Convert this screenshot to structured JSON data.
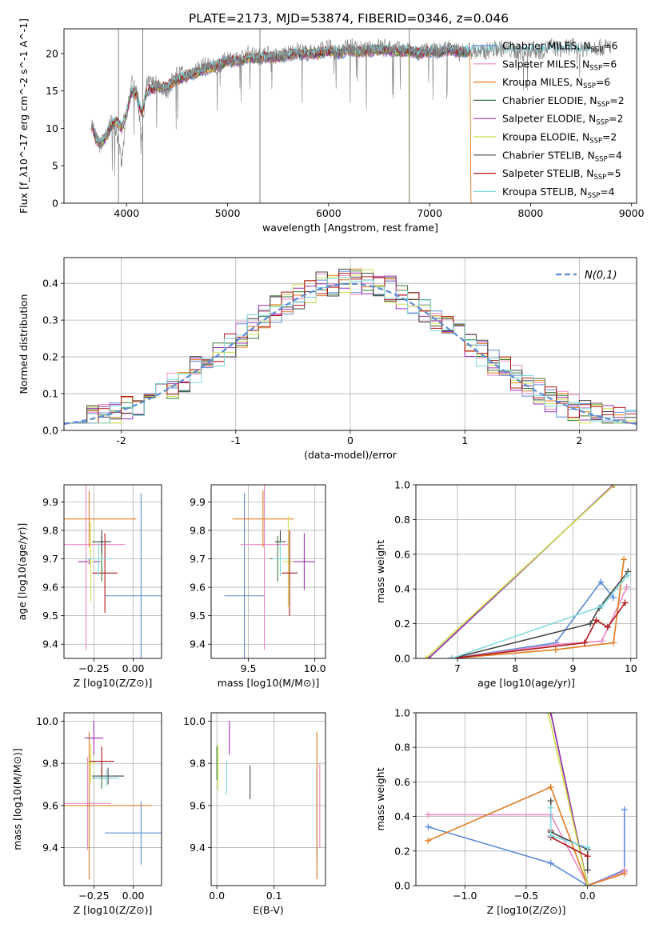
{
  "figure_title": "PLATE=2173, MJD=53874, FIBERID=0346, z=0.046",
  "colors": {
    "Chabrier MILES": "#5b8bd6",
    "Salpeter MILES": "#e88ac4",
    "Kroupa MILES": "#e07b1f",
    "Chabrier ELODIE": "#3a7a3a",
    "Salpeter ELODIE": "#9b30b0",
    "Kroupa ELODIE": "#cfe04a",
    "Chabrier STELIB": "#444444",
    "Salpeter STELIB": "#b01818",
    "Kroupa STELIB": "#7ed9e0",
    "grid": "#b0b0b0",
    "normal_curve": "#5b8bd6"
  },
  "chart_data": [
    {
      "id": "spectrum",
      "type": "line",
      "xlabel": "wavelength [Angstrom, rest frame]",
      "ylabel": "Flux [f_λ10^-17 erg cm^-2 s^-1 A^-1]",
      "xlim": [
        3380,
        9050
      ],
      "ylim": [
        0,
        23.3
      ],
      "xticks": [
        4000,
        5000,
        6000,
        7000,
        8000,
        9000
      ],
      "yticks": [
        0,
        5,
        10,
        15,
        20
      ],
      "grid": false,
      "legend_position": "top-right",
      "legend": [
        {
          "model": "Chabrier MILES",
          "nssp": "6"
        },
        {
          "model": "Salpeter MILES",
          "nssp": "6"
        },
        {
          "model": "Kroupa MILES",
          "nssp": "6"
        },
        {
          "model": "Chabrier ELODIE",
          "nssp": "2"
        },
        {
          "model": "Salpeter ELODIE",
          "nssp": "2"
        },
        {
          "model": "Kroupa ELODIE",
          "nssp": "2"
        },
        {
          "model": "Chabrier STELIB",
          "nssp": "4"
        },
        {
          "model": "Salpeter STELIB",
          "nssp": "5"
        },
        {
          "model": "Kroupa STELIB",
          "nssp": "4"
        }
      ],
      "data_series": {
        "name": "data",
        "color": "#808080",
        "x": [
          3650,
          3700,
          3750,
          3800,
          3850,
          3900,
          3950,
          4000,
          4050,
          4100,
          4150,
          4200,
          4300,
          4400,
          4500,
          4600,
          4700,
          4800,
          4900,
          5000,
          5100,
          5200,
          5300,
          5400,
          5500,
          5600,
          5700,
          5800,
          5900,
          6000,
          6100,
          6200,
          6300,
          6400,
          6500,
          6600,
          6700,
          6800,
          6900,
          7000,
          7100,
          7200,
          7300,
          7400,
          7500,
          7600,
          7700,
          7800,
          7900,
          8000,
          8100,
          8200,
          8300,
          8400,
          8500,
          8600,
          8700,
          8800
        ],
        "y": [
          11,
          8.5,
          7.5,
          9,
          11,
          10,
          5,
          12,
          16,
          15,
          9,
          16,
          16,
          15,
          17.5,
          17,
          18,
          18.5,
          18,
          19.5,
          19,
          20,
          19.5,
          20,
          19.5,
          20,
          20.5,
          20,
          20.5,
          20.8,
          20,
          21,
          20.5,
          20.5,
          21,
          20.8,
          20.5,
          20.5,
          20,
          20.5,
          20.3,
          21,
          20,
          20.5,
          20,
          20.5,
          20.7,
          20.5,
          20,
          20.5,
          20.3,
          21,
          20.5,
          21,
          20.5,
          21,
          20.8,
          21
        ]
      },
      "model_series": {
        "x": [
          3650,
          3700,
          3750,
          3800,
          3850,
          3900,
          3950,
          4000,
          4050,
          4100,
          4150,
          4200,
          4300,
          4400,
          4500,
          4600,
          4700,
          4800,
          4900,
          5000,
          5100,
          5200,
          5300,
          5400,
          5500,
          5600,
          5700,
          5800,
          5900,
          6000,
          6100,
          6200,
          6300,
          6400,
          6500,
          6600,
          6700,
          6800,
          6900,
          7000,
          7100,
          7200,
          7300,
          7400
        ],
        "y": [
          10.5,
          8.5,
          8,
          9,
          10.5,
          11,
          10,
          12,
          15,
          14.5,
          12,
          15,
          15.5,
          15.5,
          16.5,
          17,
          17.5,
          18,
          18.3,
          19,
          19,
          19.5,
          19.3,
          19.5,
          19.5,
          19.8,
          20,
          20,
          20,
          20.3,
          20,
          20.5,
          20.2,
          20.3,
          20.5,
          20.4,
          20.3,
          20.3,
          20,
          20.3,
          20.2,
          20.5,
          20.2,
          20.3
        ]
      },
      "extended_models": [
        "Kroupa STELIB"
      ],
      "extended_x": [
        7500,
        7600,
        7700,
        7800,
        7900,
        8000,
        8100,
        8200,
        8300,
        8400,
        8500,
        8600
      ],
      "extended_y": [
        20.2,
        20.4,
        20.5,
        20.3,
        20.2,
        20.3,
        20.2,
        20.6,
        20.4,
        20.5,
        20.4,
        20.5
      ],
      "cutoffs": [
        {
          "model": "Kroupa ELODIE",
          "x": 6800
        },
        {
          "model": "Kroupa MILES",
          "x": 7410
        }
      ],
      "dropouts": [
        {
          "series": "data",
          "x": 3920
        },
        {
          "series": "data",
          "x": 4160
        },
        {
          "series": "data",
          "x": 5320
        },
        {
          "series": "data",
          "x": 6800
        }
      ]
    },
    {
      "id": "residuals",
      "type": "histogram",
      "xlabel": "(data-model)/error",
      "ylabel": "Normed distribution",
      "xlim": [
        -2.5,
        2.5
      ],
      "ylim": [
        0,
        0.47
      ],
      "xticks": [
        -2,
        -1,
        0,
        1,
        2
      ],
      "yticks": [
        0.0,
        0.1,
        0.2,
        0.3,
        0.4
      ],
      "grid": true,
      "legend_position": "top-right",
      "normal_curve_label": "N(0,1)",
      "bin_width": 0.1,
      "bins_from": -2.5,
      "bins_to": 2.5
    },
    {
      "id": "age_vs_Z",
      "type": "errorbar",
      "xlabel": "Z [log10(Z/Z⊙)]",
      "ylabel": "age [log10(age/yr)]",
      "xlim": [
        -0.44,
        0.18
      ],
      "ylim": [
        9.35,
        9.96
      ],
      "xticks": [
        -0.25,
        0.0
      ],
      "xtick_labels": [
        "−0.25",
        "0.00"
      ],
      "yticks": [
        9.4,
        9.5,
        9.6,
        9.7,
        9.8,
        9.9
      ],
      "grid": true,
      "points": [
        {
          "model": "Chabrier MILES",
          "x": 0.05,
          "xerr": 0.23,
          "y": 9.57,
          "yerr": 0.36
        },
        {
          "model": "Salpeter MILES",
          "x": -0.3,
          "xerr": 0.25,
          "y": 9.75,
          "yerr": 0.37
        },
        {
          "model": "Kroupa MILES",
          "x": -0.28,
          "xerr": 0.3,
          "y": 9.84,
          "yerr": 0.1
        },
        {
          "model": "Chabrier ELODIE",
          "x": -0.2,
          "xerr": 0.05,
          "y": 9.7,
          "yerr": 0.08
        },
        {
          "model": "Salpeter ELODIE",
          "x": -0.28,
          "xerr": 0.07,
          "y": 9.69,
          "yerr": 0.01
        },
        {
          "model": "Kroupa ELODIE",
          "x": -0.27,
          "xerr": 0.02,
          "y": 9.69,
          "yerr": 0.14
        },
        {
          "model": "Chabrier STELIB",
          "x": -0.2,
          "xerr": 0.06,
          "y": 9.76,
          "yerr": 0.04
        },
        {
          "model": "Salpeter STELIB",
          "x": -0.18,
          "xerr": 0.08,
          "y": 9.65,
          "yerr": 0.14
        },
        {
          "model": "Kroupa STELIB",
          "x": -0.22,
          "xerr": 0.09,
          "y": 9.7,
          "yerr": 0.06
        }
      ]
    },
    {
      "id": "age_vs_mass",
      "type": "errorbar",
      "xlabel": "mass [log10(M/M⊙)]",
      "ylabel": "",
      "xlim": [
        9.22,
        10.08
      ],
      "ylim": [
        9.35,
        9.96
      ],
      "xticks": [
        9.5,
        10.0
      ],
      "xtick_labels": [
        "9.5",
        "10.0"
      ],
      "yticks": [
        9.4,
        9.5,
        9.6,
        9.7,
        9.8,
        9.9
      ],
      "grid": true,
      "points": [
        {
          "model": "Chabrier MILES",
          "x": 9.47,
          "xerr": 0.15,
          "y": 9.57,
          "yerr": 0.36
        },
        {
          "model": "Salpeter MILES",
          "x": 9.62,
          "xerr": 0.18,
          "y": 9.75,
          "yerr": 0.37
        },
        {
          "model": "Kroupa MILES",
          "x": 9.61,
          "xerr": 0.23,
          "y": 9.84,
          "yerr": 0.1
        },
        {
          "model": "Chabrier ELODIE",
          "x": 9.72,
          "xerr": 0.06,
          "y": 9.7,
          "yerr": 0.08
        },
        {
          "model": "Salpeter ELODIE",
          "x": 9.92,
          "xerr": 0.08,
          "y": 9.69,
          "yerr": 0.1
        },
        {
          "model": "Kroupa ELODIE",
          "x": 9.8,
          "xerr": 0.04,
          "y": 9.69,
          "yerr": 0.16
        },
        {
          "model": "Chabrier STELIB",
          "x": 9.74,
          "xerr": 0.04,
          "y": 9.76,
          "yerr": 0.04
        },
        {
          "model": "Salpeter STELIB",
          "x": 9.81,
          "xerr": 0.06,
          "y": 9.65,
          "yerr": 0.15
        },
        {
          "model": "Kroupa STELIB",
          "x": 9.74,
          "xerr": 0.06,
          "y": 9.7,
          "yerr": 0.06
        }
      ]
    },
    {
      "id": "massweight_vs_age",
      "type": "line",
      "xlabel": "age [log10(age/yr)]",
      "ylabel": "mass weight",
      "xlim": [
        6.28,
        10.1
      ],
      "ylim": [
        0.0,
        1.0
      ],
      "xticks": [
        7,
        8,
        9,
        10
      ],
      "yticks": [
        0.0,
        0.2,
        0.4,
        0.6,
        0.8,
        1.0
      ],
      "grid": true,
      "series": [
        {
          "model": "Chabrier MILES",
          "x": [
            6.9,
            8.7,
            9.48,
            9.7
          ],
          "y": [
            0.0,
            0.09,
            0.44,
            0.35
          ]
        },
        {
          "model": "Salpeter MILES",
          "x": [
            6.9,
            8.7,
            9.5,
            9.93
          ],
          "y": [
            0.0,
            0.08,
            0.1,
            0.41
          ]
        },
        {
          "model": "Kroupa MILES",
          "x": [
            6.9,
            8.7,
            9.7,
            9.88
          ],
          "y": [
            0.0,
            0.05,
            0.09,
            0.57
          ]
        },
        {
          "model": "Chabrier ELODIE",
          "x": [
            6.5,
            9.7
          ],
          "y": [
            0.0,
            1.0
          ]
        },
        {
          "model": "Salpeter ELODIE",
          "x": [
            6.5,
            9.7
          ],
          "y": [
            0.0,
            1.0
          ]
        },
        {
          "model": "Kroupa ELODIE",
          "x": [
            6.45,
            9.72
          ],
          "y": [
            0.0,
            1.0
          ]
        },
        {
          "model": "Chabrier STELIB",
          "x": [
            6.9,
            9.3,
            9.45,
            9.95
          ],
          "y": [
            0.0,
            0.2,
            0.29,
            0.5
          ]
        },
        {
          "model": "Salpeter STELIB",
          "x": [
            6.9,
            9.2,
            9.4,
            9.6,
            9.9
          ],
          "y": [
            0.0,
            0.09,
            0.22,
            0.18,
            0.32
          ]
        },
        {
          "model": "Kroupa STELIB",
          "x": [
            6.9,
            9.5,
            9.95
          ],
          "y": [
            0.0,
            0.3,
            0.48
          ]
        }
      ]
    },
    {
      "id": "mass_vs_Z",
      "type": "errorbar",
      "xlabel": "Z [log10(Z/Z⊙)]",
      "ylabel": "mass [log10(M/M⊙)]",
      "xlim": [
        -0.44,
        0.18
      ],
      "ylim": [
        9.22,
        10.04
      ],
      "xticks": [
        -0.25,
        0.0
      ],
      "xtick_labels": [
        "−0.25",
        "0.00"
      ],
      "yticks": [
        9.4,
        9.6,
        9.8,
        10.0
      ],
      "grid": true,
      "points": [
        {
          "model": "Chabrier MILES",
          "x": 0.05,
          "xerr": 0.23,
          "y": 9.47,
          "yerr": 0.15
        },
        {
          "model": "Salpeter MILES",
          "x": -0.29,
          "xerr": 0.15,
          "y": 9.61,
          "yerr": 0.22
        },
        {
          "model": "Kroupa MILES",
          "x": -0.28,
          "xerr": 0.4,
          "y": 9.6,
          "yerr": 0.35
        },
        {
          "model": "Chabrier ELODIE",
          "x": -0.2,
          "xerr": 0.06,
          "y": 9.73,
          "yerr": 0.05
        },
        {
          "model": "Salpeter ELODIE",
          "x": -0.25,
          "xerr": 0.06,
          "y": 9.92,
          "yerr": 0.08
        },
        {
          "model": "Kroupa ELODIE",
          "x": -0.27,
          "xerr": 0.03,
          "y": 9.8,
          "yerr": 0.09
        },
        {
          "model": "Chabrier STELIB",
          "x": -0.16,
          "xerr": 0.1,
          "y": 9.74,
          "yerr": 0.04
        },
        {
          "model": "Salpeter STELIB",
          "x": -0.2,
          "xerr": 0.08,
          "y": 9.81,
          "yerr": 0.07
        },
        {
          "model": "Kroupa STELIB",
          "x": -0.17,
          "xerr": 0.08,
          "y": 9.73,
          "yerr": 0.04
        }
      ]
    },
    {
      "id": "mass_vs_ebv",
      "type": "errorbar",
      "xlabel": "E(B-V)",
      "ylabel": "",
      "xlim": [
        -0.01,
        0.19
      ],
      "ylim": [
        9.22,
        10.04
      ],
      "xticks": [
        0.0,
        0.1
      ],
      "xtick_labels": [
        "0.0",
        "0.1"
      ],
      "yticks": [
        9.4,
        9.6,
        9.8,
        10.0
      ],
      "grid": true,
      "points": [
        {
          "model": "Chabrier MILES",
          "x": 0.175,
          "xerr": 0.0,
          "y": 9.55,
          "yerr": 0.22
        },
        {
          "model": "Salpeter MILES",
          "x": 0.18,
          "xerr": 0.0,
          "y": 9.6,
          "yerr": 0.2
        },
        {
          "model": "Kroupa MILES",
          "x": 0.175,
          "xerr": 0.0,
          "y": 9.6,
          "yerr": 0.35
        },
        {
          "model": "Chabrier ELODIE",
          "x": 0.0,
          "xerr": 0.0,
          "y": 9.8,
          "yerr": 0.08
        },
        {
          "model": "Salpeter ELODIE",
          "x": 0.022,
          "xerr": 0.0,
          "y": 9.92,
          "yerr": 0.08
        },
        {
          "model": "Kroupa ELODIE",
          "x": 0.002,
          "xerr": 0.0,
          "y": 9.78,
          "yerr": 0.11
        },
        {
          "model": "Chabrier STELIB",
          "x": 0.058,
          "xerr": 0.0,
          "y": 9.71,
          "yerr": 0.08
        },
        {
          "model": "Salpeter STELIB",
          "x": 0.0,
          "xerr": 0.0,
          "y": 9.81,
          "yerr": 0.0
        },
        {
          "model": "Kroupa STELIB",
          "x": 0.017,
          "xerr": 0.0,
          "y": 9.73,
          "yerr": 0.08
        }
      ]
    },
    {
      "id": "massweight_vs_Z",
      "type": "line",
      "xlabel": "Z [log10(Z/Z⊙)]",
      "ylabel": "mass weight",
      "xlim": [
        -1.4,
        0.4
      ],
      "ylim": [
        0.0,
        1.0
      ],
      "xticks": [
        -1.0,
        -0.5,
        0.0
      ],
      "xtick_labels": [
        "−1.0",
        "−0.5",
        "0.0"
      ],
      "yticks": [
        0.0,
        0.2,
        0.4,
        0.6,
        0.8,
        1.0
      ],
      "grid": true,
      "series": [
        {
          "model": "Chabrier MILES",
          "x": [
            -1.3,
            -0.3,
            0.0,
            0.3,
            0.3
          ],
          "y": [
            0.34,
            0.13,
            0.0,
            0.09,
            0.44
          ]
        },
        {
          "model": "Salpeter MILES",
          "x": [
            -1.3,
            -0.3,
            0.0,
            0.3,
            0.3
          ],
          "y": [
            0.41,
            0.41,
            0.0,
            0.08,
            0.09
          ]
        },
        {
          "model": "Kroupa MILES",
          "x": [
            -1.3,
            -0.3,
            0.0,
            0.3
          ],
          "y": [
            0.26,
            0.57,
            0.0,
            0.07
          ]
        },
        {
          "model": "Chabrier ELODIE",
          "x": [
            -0.3,
            0.0
          ],
          "y": [
            1.0,
            0.0
          ]
        },
        {
          "model": "Salpeter ELODIE",
          "x": [
            -0.3,
            0.0
          ],
          "y": [
            1.0,
            0.0
          ]
        },
        {
          "model": "Kroupa ELODIE",
          "x": [
            -0.32,
            0.0
          ],
          "y": [
            1.0,
            0.0
          ]
        },
        {
          "model": "Chabrier STELIB",
          "x": [
            -0.3,
            -0.3,
            0.0,
            0.0
          ],
          "y": [
            0.49,
            0.31,
            0.21,
            0.09
          ]
        },
        {
          "model": "Salpeter STELIB",
          "x": [
            -0.3,
            -0.3,
            0.0
          ],
          "y": [
            0.32,
            0.28,
            0.17
          ]
        },
        {
          "model": "Kroupa STELIB",
          "x": [
            -0.3,
            -0.3,
            0.0
          ],
          "y": [
            0.45,
            0.29,
            0.22
          ]
        }
      ]
    }
  ]
}
